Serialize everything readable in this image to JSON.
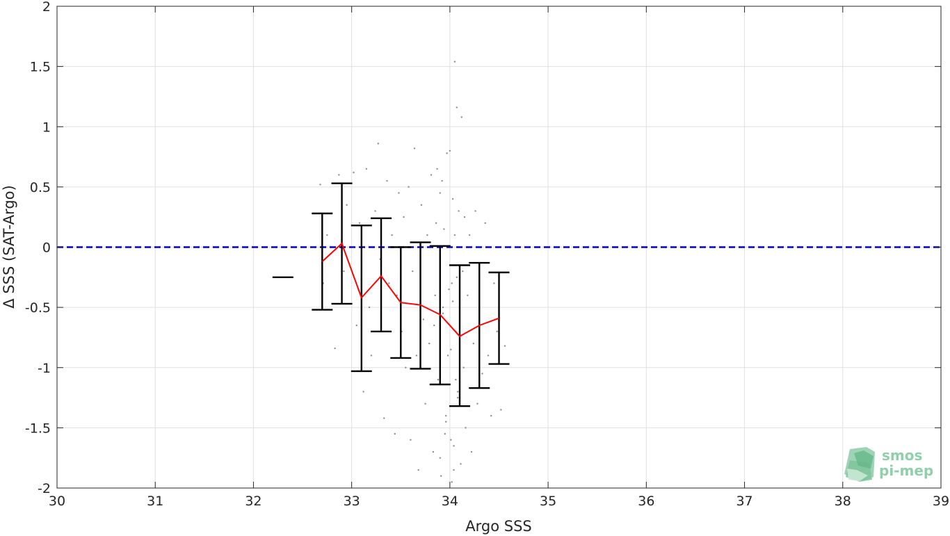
{
  "chart_data": {
    "type": "scatter",
    "xlabel": "Argo SSS",
    "ylabel": "Δ SSS (SAT-Argo)",
    "xlim": [
      30,
      39
    ],
    "ylim": [
      -2,
      2
    ],
    "x_ticks": [
      30,
      31,
      32,
      33,
      34,
      35,
      36,
      37,
      38,
      39
    ],
    "y_ticks": [
      -2,
      -1.5,
      -1,
      -0.5,
      0,
      0.5,
      1,
      1.5,
      2
    ],
    "x_tick_labels": [
      "30",
      "31",
      "32",
      "33",
      "34",
      "35",
      "36",
      "37",
      "38",
      "39"
    ],
    "y_tick_labels": [
      "-2",
      "-1.5",
      "-1",
      "-0.5",
      "0",
      "0.5",
      "1",
      "1.5",
      "2"
    ],
    "grid": true,
    "zero_line": {
      "y": 0,
      "color": "#0000cc",
      "style": "dashed"
    },
    "mean_line": {
      "color": "#ff0000",
      "x": [
        32.7,
        32.9,
        33.1,
        33.3,
        33.5,
        33.7,
        33.9,
        34.1,
        34.3,
        34.5
      ],
      "y": [
        -0.12,
        0.03,
        -0.42,
        -0.24,
        -0.46,
        -0.48,
        -0.56,
        -0.74,
        -0.65,
        -0.59
      ]
    },
    "error_bars": {
      "color": "#000000",
      "bins": [
        {
          "x": 32.3,
          "low": -0.25,
          "high": -0.25
        },
        {
          "x": 32.7,
          "low": -0.52,
          "high": 0.28
        },
        {
          "x": 32.9,
          "low": -0.47,
          "high": 0.53
        },
        {
          "x": 33.1,
          "low": -1.03,
          "high": 0.18
        },
        {
          "x": 33.3,
          "low": -0.7,
          "high": 0.24
        },
        {
          "x": 33.5,
          "low": -0.92,
          "high": 0.0
        },
        {
          "x": 33.7,
          "low": -1.01,
          "high": 0.04
        },
        {
          "x": 33.9,
          "low": -1.14,
          "high": 0.01
        },
        {
          "x": 34.1,
          "low": -1.32,
          "high": -0.15
        },
        {
          "x": 34.3,
          "low": -1.17,
          "high": -0.13
        },
        {
          "x": 34.5,
          "low": -0.97,
          "high": -0.21
        }
      ]
    },
    "scatter_points": {
      "color": "#8c8c8c",
      "x": [
        32.68,
        32.71,
        32.75,
        32.83,
        32.87,
        32.92,
        32.95,
        33.02,
        33.05,
        33.08,
        33.12,
        33.15,
        33.18,
        33.2,
        33.24,
        33.27,
        33.29,
        33.33,
        33.36,
        33.38,
        33.41,
        33.44,
        33.46,
        33.48,
        33.51,
        33.53,
        33.55,
        33.58,
        33.6,
        33.62,
        33.64,
        33.66,
        33.68,
        33.71,
        33.73,
        33.75,
        33.77,
        33.79,
        33.81,
        33.83,
        33.85,
        33.86,
        33.88,
        33.9,
        33.91,
        33.93,
        33.94,
        33.96,
        33.97,
        33.98,
        34.0,
        34.01,
        34.02,
        34.03,
        34.04,
        34.05,
        34.06,
        34.07,
        34.08,
        34.09,
        34.1,
        34.11,
        34.12,
        34.13,
        34.14,
        34.15,
        34.16,
        34.18,
        34.2,
        34.22,
        34.24,
        34.26,
        34.28,
        34.3,
        34.33,
        34.36,
        34.39,
        34.42,
        34.45,
        34.48,
        34.52,
        34.56,
        33.92,
        33.95,
        33.99,
        34.02,
        34.05,
        34.08,
        33.87,
        33.84,
        33.9,
        34.0,
        34.03,
        34.06,
        34.1,
        33.96,
        33.93,
        34.01,
        34.04,
        34.07
      ],
      "y": [
        0.52,
        -0.3,
        0.1,
        -0.84,
        0.6,
        -0.2,
        0.35,
        0.62,
        -0.65,
        0.2,
        -1.2,
        0.65,
        -0.5,
        -0.9,
        0.3,
        0.86,
        -0.1,
        -1.42,
        0.55,
        -0.3,
        0.1,
        -1.55,
        -0.4,
        0.45,
        -0.7,
        0.25,
        -1.0,
        0.5,
        -1.6,
        -0.2,
        0.82,
        -0.9,
        -1.85,
        0.35,
        -0.6,
        -1.3,
        0.1,
        -0.8,
        0.6,
        -1.7,
        -0.4,
        0.2,
        -1.1,
        0.45,
        -1.9,
        -0.5,
        0.15,
        -1.4,
        0.78,
        -0.9,
        0.8,
        -1.6,
        -0.3,
        0.4,
        -1.85,
        1.54,
        -0.7,
        1.16,
        -1.2,
        0.3,
        -0.5,
        -1.8,
        1.08,
        -0.2,
        -1.0,
        0.25,
        -1.5,
        -0.4,
        0.1,
        -1.7,
        -0.8,
        0.3,
        -1.3,
        -0.6,
        -1.05,
        0.2,
        -0.9,
        -1.4,
        -0.3,
        -0.7,
        -1.35,
        -0.82,
        0.55,
        -1.55,
        -0.35,
        -1.95,
        0.1,
        -1.25,
        0.65,
        -0.65,
        -1.75,
        0.0,
        -0.45,
        -1.1,
        -0.15,
        -1.45,
        -0.55,
        -0.85,
        -1.65,
        -0.25
      ]
    }
  },
  "logo": {
    "line1": "smos",
    "line2": "pi-mep"
  }
}
